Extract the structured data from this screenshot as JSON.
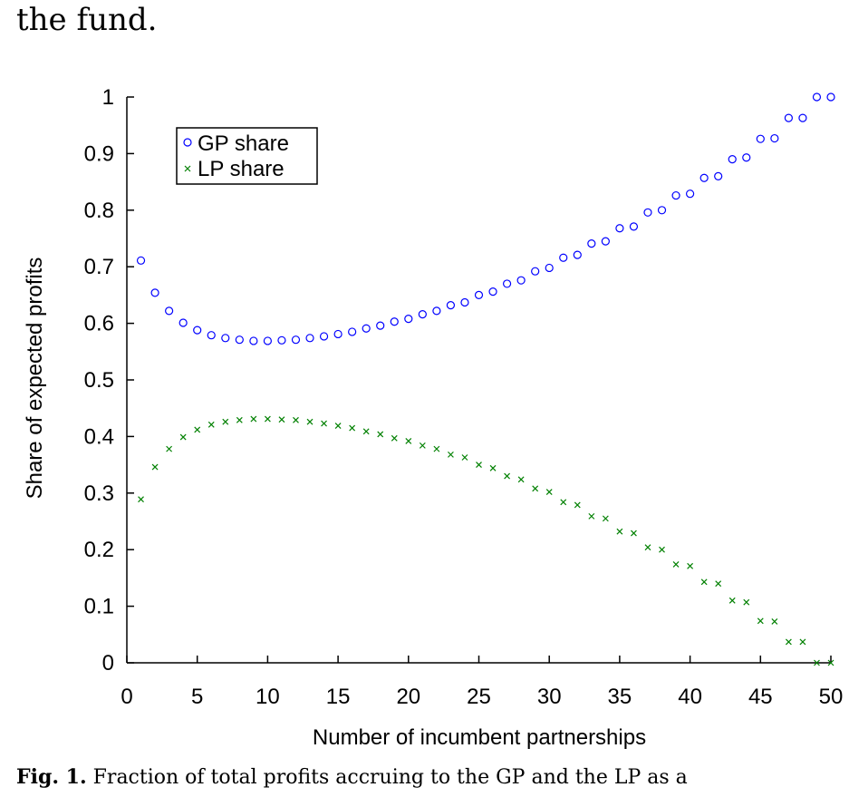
{
  "page": {
    "top_text": "the fund.",
    "caption_label": "Fig. 1.",
    "caption_text": "Fraction of total profits accruing to the GP and the LP as a"
  },
  "chart_data": {
    "type": "scatter",
    "title": "",
    "xlabel": "Number of incumbent partnerships",
    "ylabel": "Share of expected profits",
    "xlim": [
      0,
      50
    ],
    "ylim": [
      0,
      1
    ],
    "xticks": [
      "0",
      "5",
      "10",
      "15",
      "20",
      "25",
      "30",
      "35",
      "40",
      "45",
      "50"
    ],
    "yticks": [
      "0",
      "0.1",
      "0.2",
      "0.3",
      "0.4",
      "0.5",
      "0.6",
      "0.7",
      "0.8",
      "0.9",
      "1"
    ],
    "grid": false,
    "legend_position": "top-left",
    "x": [
      1,
      2,
      3,
      4,
      5,
      6,
      7,
      8,
      9,
      10,
      11,
      12,
      13,
      14,
      15,
      16,
      17,
      18,
      19,
      20,
      21,
      22,
      23,
      24,
      25,
      26,
      27,
      28,
      29,
      30,
      31,
      32,
      33,
      34,
      35,
      36,
      37,
      38,
      39,
      40,
      41,
      42,
      43,
      44,
      45,
      46,
      47,
      48,
      49,
      50
    ],
    "series": [
      {
        "name": "GP share",
        "marker": "circle",
        "color": "#0000ff",
        "values": [
          0.711,
          0.654,
          0.622,
          0.601,
          0.588,
          0.579,
          0.574,
          0.571,
          0.569,
          0.569,
          0.57,
          0.571,
          0.574,
          0.577,
          0.581,
          0.585,
          0.591,
          0.596,
          0.603,
          0.608,
          0.616,
          0.622,
          0.632,
          0.637,
          0.65,
          0.656,
          0.67,
          0.676,
          0.692,
          0.698,
          0.716,
          0.721,
          0.741,
          0.745,
          0.768,
          0.771,
          0.796,
          0.8,
          0.826,
          0.829,
          0.857,
          0.86,
          0.89,
          0.893,
          0.926,
          0.927,
          0.963,
          0.963,
          1.0,
          1.0
        ]
      },
      {
        "name": "LP share",
        "marker": "x",
        "color": "#008000",
        "values": [
          0.289,
          0.346,
          0.378,
          0.399,
          0.412,
          0.421,
          0.426,
          0.429,
          0.431,
          0.431,
          0.43,
          0.429,
          0.426,
          0.423,
          0.419,
          0.415,
          0.409,
          0.404,
          0.397,
          0.392,
          0.384,
          0.378,
          0.368,
          0.363,
          0.35,
          0.344,
          0.33,
          0.324,
          0.308,
          0.302,
          0.284,
          0.279,
          0.259,
          0.255,
          0.232,
          0.229,
          0.204,
          0.2,
          0.174,
          0.171,
          0.143,
          0.14,
          0.11,
          0.107,
          0.074,
          0.073,
          0.037,
          0.037,
          0.0,
          0.0
        ]
      }
    ]
  }
}
